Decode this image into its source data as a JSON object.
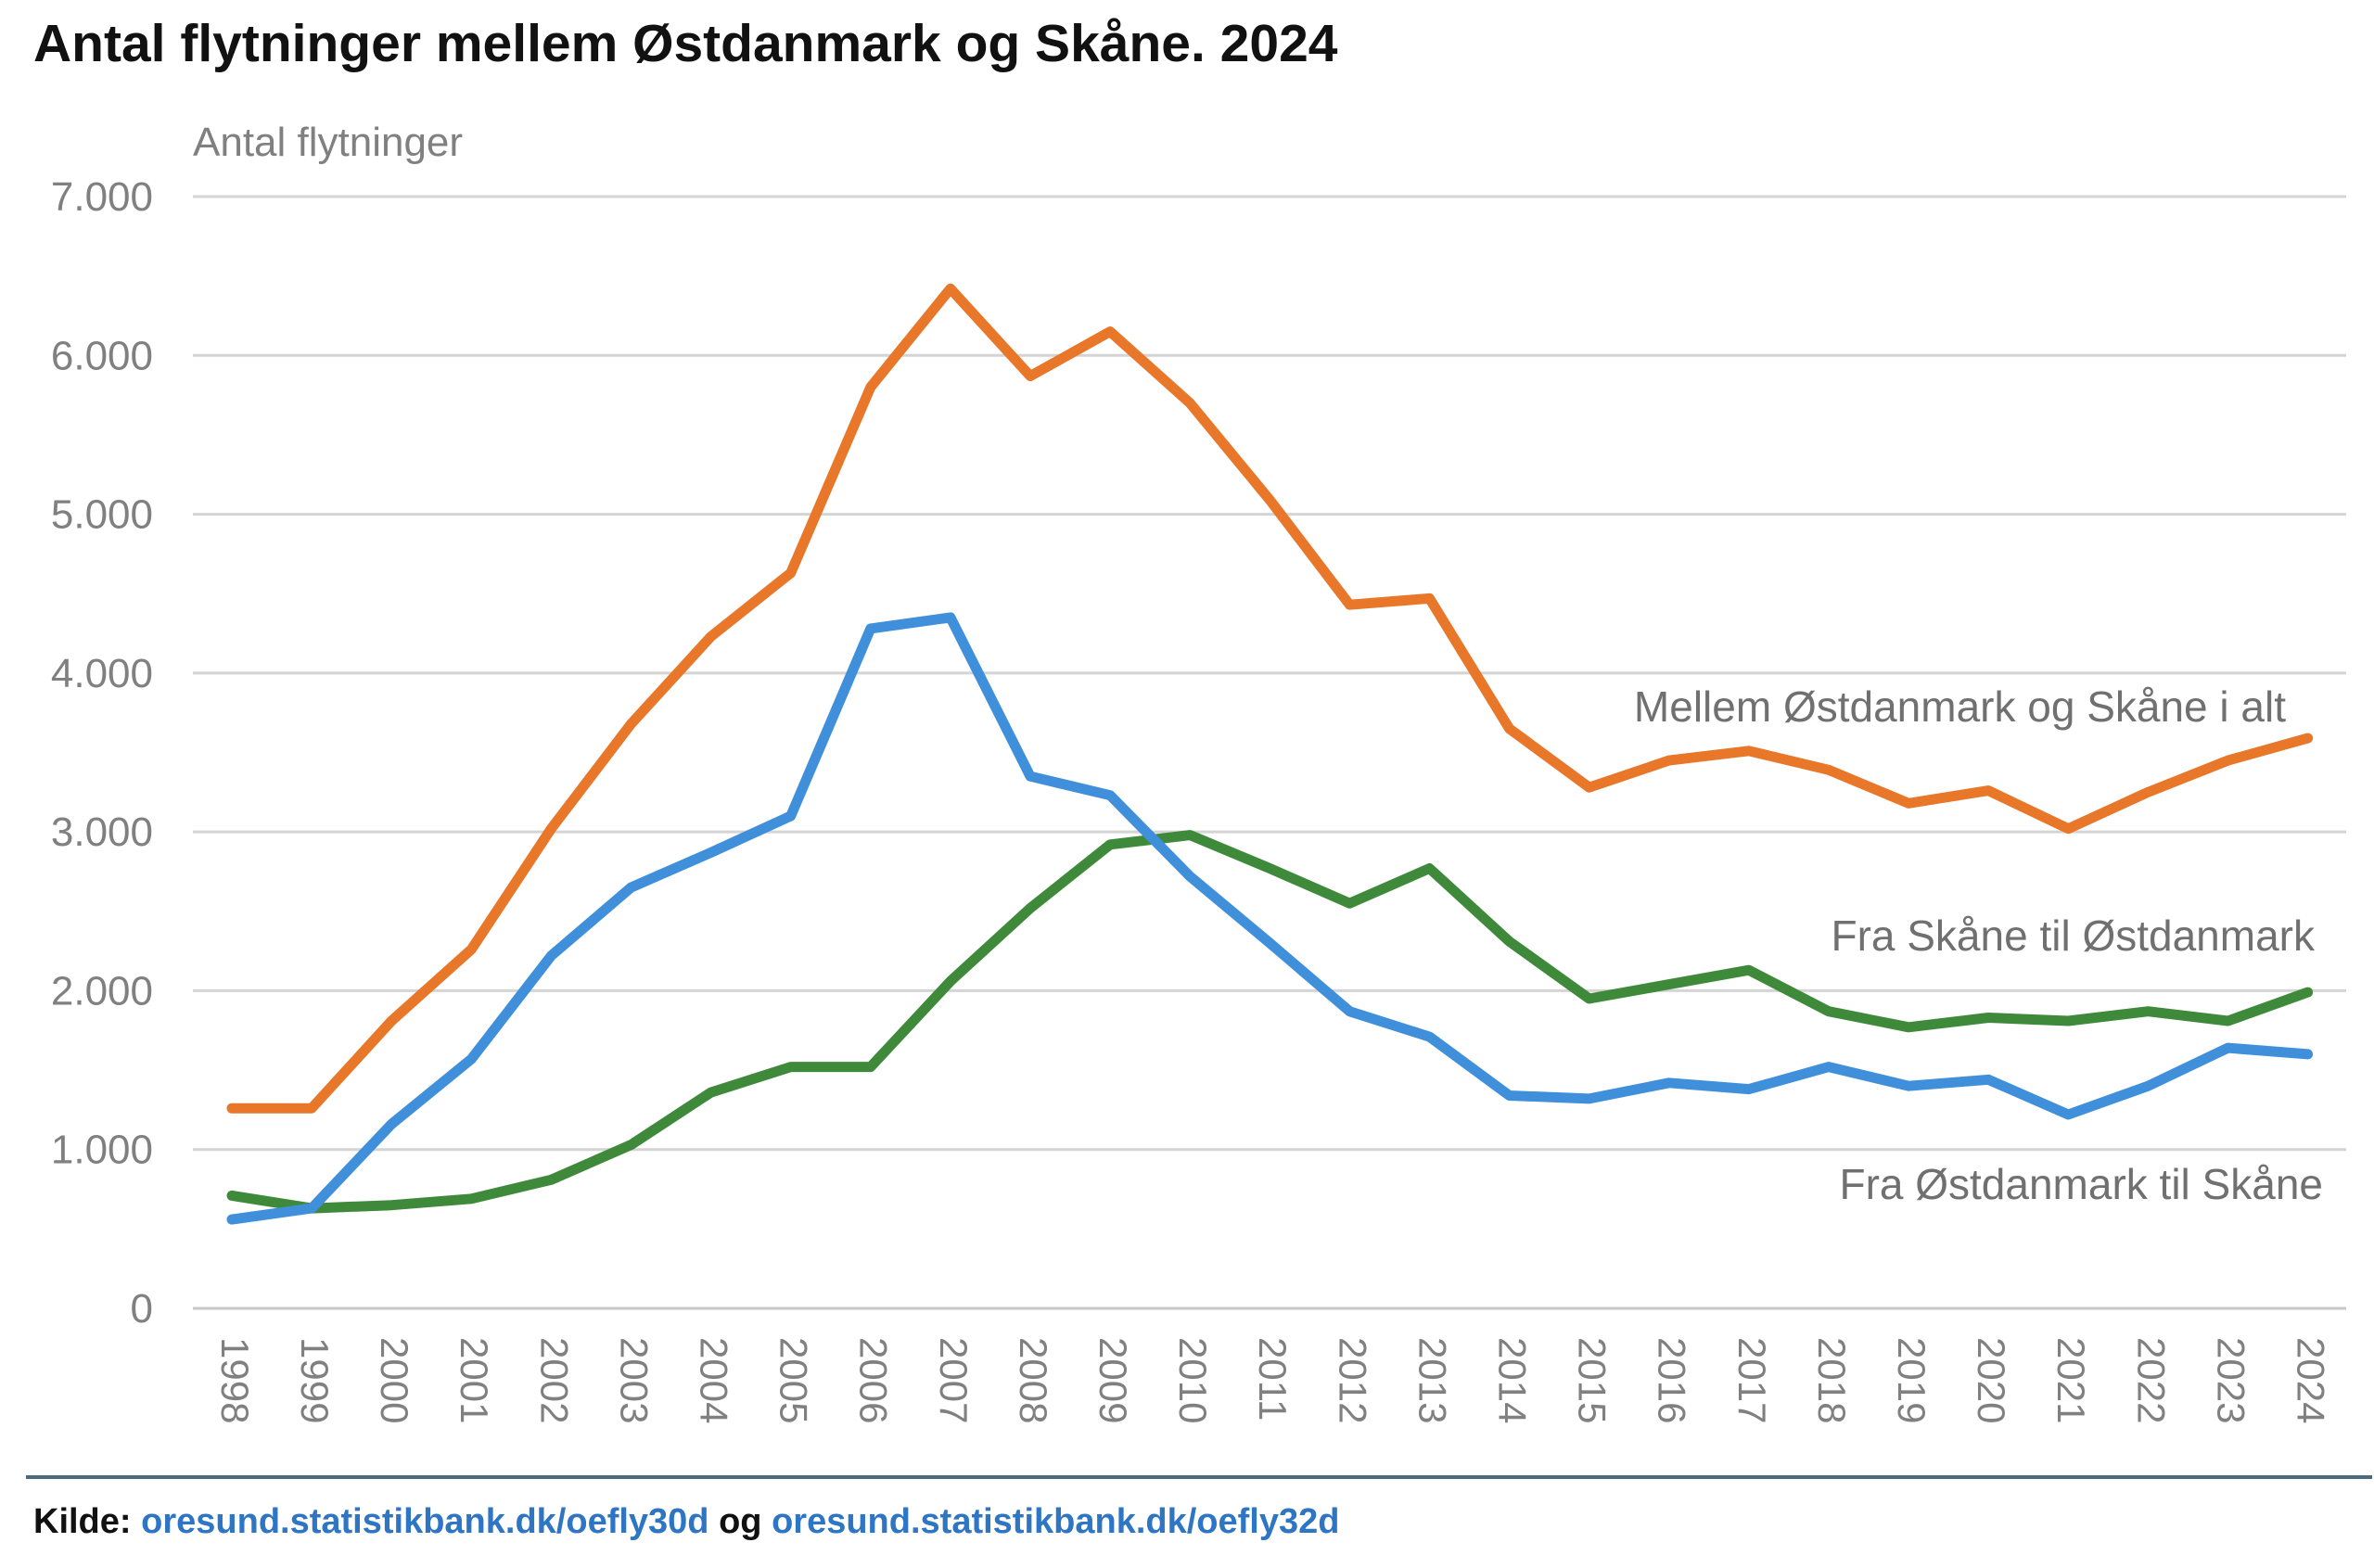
{
  "title": "Antal flytninger mellem Østdanmark og Skåne. 2024",
  "source": {
    "prefix": "Kilde: ",
    "link1": "oresund.statistikbank.dk/oefly30d",
    "connector": " og ",
    "link2": "oresund.statistikbank.dk/oefly32d"
  },
  "chart_data": {
    "type": "line",
    "title": "Antal flytninger mellem Østdanmark og Skåne. 2024",
    "ylabel": "Antal flytninger",
    "xlabel": "",
    "ylim": [
      0,
      7000
    ],
    "yticks": [
      0,
      1000,
      2000,
      3000,
      4000,
      5000,
      6000,
      7000
    ],
    "ytick_labels": [
      "0",
      "1.000",
      "2.000",
      "3.000",
      "4.000",
      "5.000",
      "6.000",
      "7.000"
    ],
    "grid": true,
    "legend": "inline labels",
    "x": [
      "1998",
      "1999",
      "2000",
      "2001",
      "2002",
      "2003",
      "2004",
      "2005",
      "2006",
      "2007",
      "2008",
      "2009",
      "2010",
      "2011",
      "2012",
      "2013",
      "2014",
      "2015",
      "2016",
      "2017",
      "2018",
      "2019",
      "2020",
      "2021",
      "2022",
      "2023",
      "2024"
    ],
    "series": [
      {
        "name": "Mellem Østdanmark og Skåne i alt",
        "color": "#e8772a",
        "values": [
          1260,
          1260,
          1810,
          2260,
          3020,
          3680,
          4230,
          4630,
          5800,
          6420,
          5870,
          6150,
          5700,
          5090,
          4430,
          4470,
          3650,
          3280,
          3450,
          3510,
          3390,
          3180,
          3260,
          3020,
          3250,
          3450,
          3590
        ]
      },
      {
        "name": "Fra Skåne til Østdanmark",
        "color": "#3f8a3a",
        "values": [
          710,
          630,
          650,
          690,
          810,
          1030,
          1360,
          1520,
          1520,
          2060,
          2520,
          2920,
          2980,
          2770,
          2550,
          2770,
          2310,
          1950,
          2040,
          2130,
          1870,
          1770,
          1830,
          1810,
          1870,
          1810,
          1990
        ]
      },
      {
        "name": "Fra Østdanmark til Skåne",
        "color": "#3f8fdb",
        "values": [
          560,
          630,
          1160,
          1570,
          2220,
          2650,
          2870,
          3100,
          4280,
          4350,
          3350,
          3230,
          2720,
          2300,
          1870,
          1710,
          1340,
          1320,
          1420,
          1380,
          1520,
          1400,
          1440,
          1220,
          1400,
          1640,
          1600
        ]
      }
    ]
  }
}
